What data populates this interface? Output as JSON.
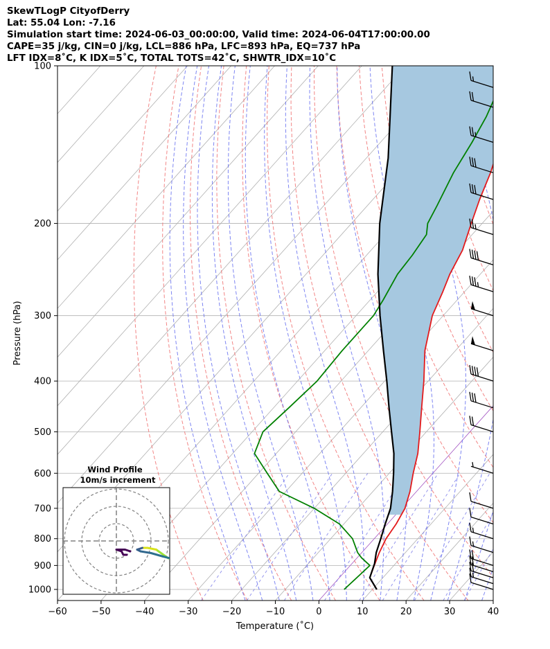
{
  "header": {
    "line1": "SkewTLogP CityofDerry",
    "line2": "Lat: 55.04   Lon: -7.16",
    "line3": "Simulation start time: 2024-06-03_00:00:00, Valid time: 2024-06-04T17:00:00.00",
    "line4": "CAPE=35 j/kg, CIN=0 j/kg, LCL=886 hPa, LFC=893 hPa, EQ=737 hPa",
    "line5": "LFT IDX=8˚C, K IDX=5˚C, TOTAL TOTS=42˚C, SHWTR_IDX=10˚C"
  },
  "chart_data": {
    "type": "line",
    "title": "SkewTLogP CityofDerry",
    "xlabel": "Temperature (˚C)",
    "ylabel": "Pressure (hPa)",
    "xlim": [
      -60,
      40
    ],
    "ylim": [
      1050,
      100
    ],
    "y_scale": "log",
    "grid": true,
    "x_ticks": [
      -60,
      -50,
      -40,
      -30,
      -20,
      -10,
      0,
      10,
      20,
      30,
      40
    ],
    "y_ticks": [
      1000,
      900,
      800,
      700,
      600,
      500,
      400,
      300,
      200,
      100
    ],
    "colors": {
      "temperature": "#e31a1c",
      "dewpoint": "#008000",
      "parcel": "#000000",
      "cape_fill": "#a6c8e0",
      "dry_adiabat": "#f07070",
      "moist_adiabat": "#6670f0",
      "mixing_ratio": "#7a7ae8",
      "isotherm": "#b0b0b0",
      "zero_isotherm": "#a050c0"
    },
    "series": [
      {
        "name": "temperature",
        "points": [
          [
            1000,
            11.0
          ],
          [
            950,
            7.0
          ],
          [
            900,
            5.5
          ],
          [
            850,
            4.0
          ],
          [
            800,
            2.7
          ],
          [
            750,
            2.0
          ],
          [
            700,
            0.8
          ],
          [
            650,
            -1.5
          ],
          [
            600,
            -4.5
          ],
          [
            550,
            -7.5
          ],
          [
            500,
            -11.5
          ],
          [
            450,
            -16.0
          ],
          [
            400,
            -21.0
          ],
          [
            350,
            -27.0
          ],
          [
            300,
            -32.5
          ],
          [
            270,
            -35.0
          ],
          [
            250,
            -37.0
          ],
          [
            225,
            -39.0
          ],
          [
            200,
            -42.5
          ],
          [
            180,
            -45.5
          ],
          [
            160,
            -48.5
          ],
          [
            140,
            -52.5
          ],
          [
            125,
            -55.5
          ],
          [
            110,
            -58.0
          ],
          [
            100,
            -59.5
          ]
        ]
      },
      {
        "name": "dewpoint",
        "points": [
          [
            1000,
            3.5
          ],
          [
            950,
            4.0
          ],
          [
            900,
            4.5
          ],
          [
            870,
            1.0
          ],
          [
            850,
            -1.0
          ],
          [
            800,
            -5.0
          ],
          [
            750,
            -11.0
          ],
          [
            700,
            -20.0
          ],
          [
            650,
            -31.5
          ],
          [
            600,
            -38.0
          ],
          [
            550,
            -45.0
          ],
          [
            500,
            -47.5
          ],
          [
            450,
            -46.5
          ],
          [
            400,
            -45.5
          ],
          [
            350,
            -46.0
          ],
          [
            300,
            -46.0
          ],
          [
            280,
            -47.0
          ],
          [
            250,
            -49.0
          ],
          [
            230,
            -49.5
          ],
          [
            210,
            -50.5
          ],
          [
            200,
            -52.5
          ],
          [
            185,
            -54.0
          ],
          [
            160,
            -57.0
          ],
          [
            140,
            -59.0
          ],
          [
            125,
            -61.0
          ],
          [
            110,
            -64.0
          ],
          [
            100,
            -66.0
          ]
        ]
      },
      {
        "name": "parcel",
        "points": [
          [
            1000,
            11.0
          ],
          [
            950,
            7.0
          ],
          [
            893,
            5.2
          ],
          [
            850,
            3.3
          ],
          [
            800,
            1.5
          ],
          [
            750,
            -0.5
          ],
          [
            700,
            -2.5
          ],
          [
            650,
            -5.5
          ],
          [
            600,
            -9.0
          ],
          [
            550,
            -13.0
          ],
          [
            500,
            -18.0
          ],
          [
            450,
            -23.5
          ],
          [
            400,
            -29.5
          ],
          [
            350,
            -36.5
          ],
          [
            300,
            -44.5
          ],
          [
            250,
            -53.5
          ],
          [
            200,
            -63.5
          ],
          [
            150,
            -75.0
          ],
          [
            100,
            -93.0
          ]
        ]
      }
    ],
    "wind_barbs": [
      {
        "p": 1000,
        "speed": 10
      },
      {
        "p": 975,
        "speed": 15
      },
      {
        "p": 950,
        "speed": 20
      },
      {
        "p": 925,
        "speed": 20
      },
      {
        "p": 900,
        "speed": 20
      },
      {
        "p": 850,
        "speed": 15
      },
      {
        "p": 800,
        "speed": 15
      },
      {
        "p": 750,
        "speed": 10
      },
      {
        "p": 700,
        "speed": 10
      },
      {
        "p": 600,
        "speed": 5
      },
      {
        "p": 500,
        "speed": 20
      },
      {
        "p": 450,
        "speed": 30
      },
      {
        "p": 400,
        "speed": 40
      },
      {
        "p": 350,
        "speed": 50
      },
      {
        "p": 300,
        "speed": 50
      },
      {
        "p": 270,
        "speed": 35
      },
      {
        "p": 240,
        "speed": 40
      },
      {
        "p": 210,
        "speed": 25
      },
      {
        "p": 180,
        "speed": 30
      },
      {
        "p": 160,
        "speed": 30
      },
      {
        "p": 140,
        "speed": 25
      },
      {
        "p": 120,
        "speed": 20
      },
      {
        "p": 110,
        "speed": 15
      }
    ],
    "inset": {
      "title_line1": "Wind Profile",
      "title_line2": "10m/s increment",
      "ring_count": 3,
      "hodograph": [
        {
          "u": 30,
          "v": -10,
          "color": "#9be337"
        },
        {
          "u": 23,
          "v": -5,
          "color": "#9be337"
        },
        {
          "u": 18,
          "v": -4,
          "color": "#d8e219"
        },
        {
          "u": 15,
          "v": -4,
          "color": "#d8e219"
        },
        {
          "u": 12,
          "v": -5,
          "color": "#3b5b8c"
        },
        {
          "u": 14,
          "v": -6,
          "color": "#35608d"
        },
        {
          "u": 20,
          "v": -7,
          "color": "#31688e"
        },
        {
          "u": 27,
          "v": -9,
          "color": "#2d708e"
        },
        {
          "u": 31,
          "v": -10,
          "color": "#29798e"
        }
      ],
      "hodograph_low": [
        {
          "u": 8,
          "v": -6
        },
        {
          "u": 5,
          "v": -5
        },
        {
          "u": 2,
          "v": -5
        },
        {
          "u": 0,
          "v": -5
        },
        {
          "u": 3,
          "v": -6
        },
        {
          "u": 4,
          "v": -8
        },
        {
          "u": 6,
          "v": -8
        }
      ]
    }
  }
}
